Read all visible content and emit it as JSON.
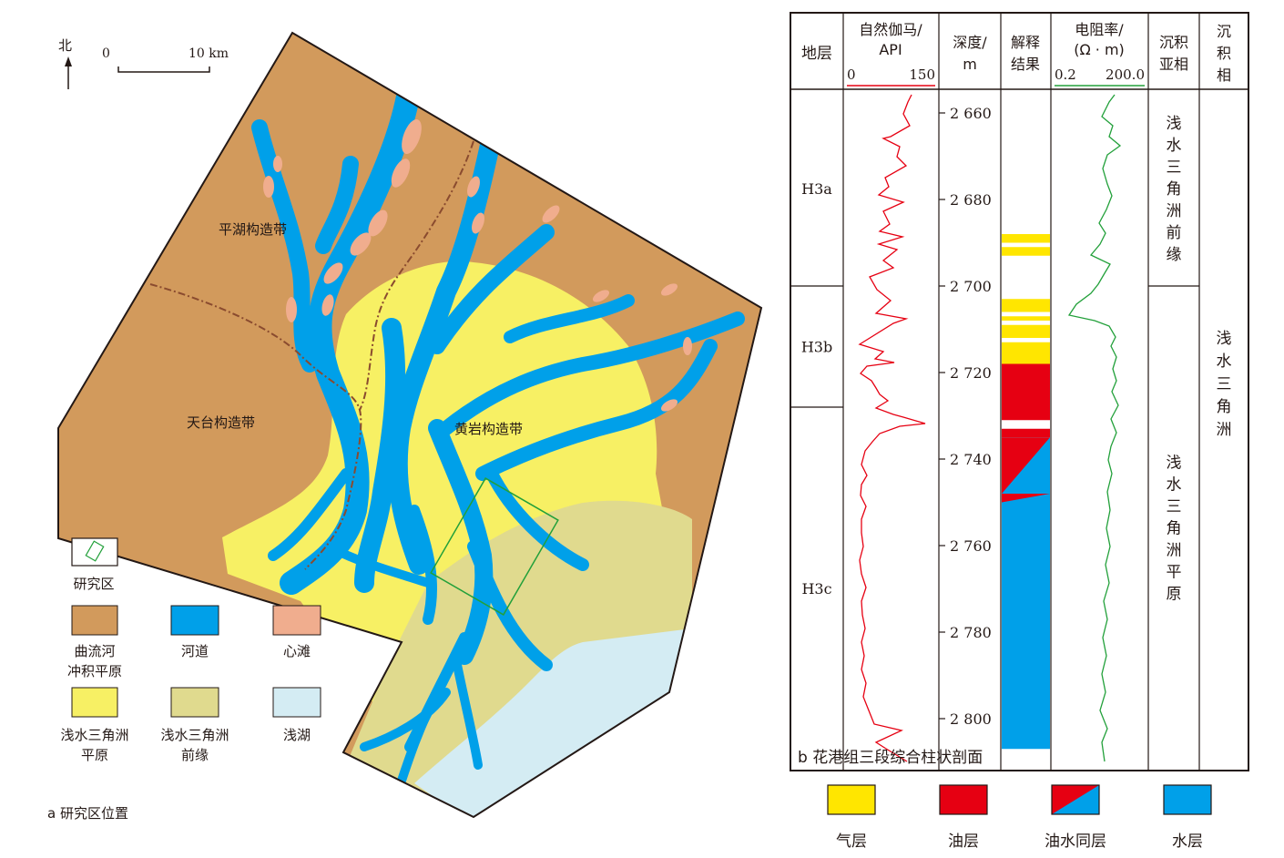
{
  "map": {
    "north_label": "北",
    "scale_start": "0",
    "scale_end": "10 km",
    "zones": {
      "pinghu": "平湖构造带",
      "tiantai": "天台构造带",
      "huangyan": "黄岩构造带"
    },
    "caption": "a 研究区位置",
    "colors": {
      "meander_plain": "#d29a5c",
      "channel": "#00a0e9",
      "bar": "#f0ad8e",
      "delta_plain": "#f7f064",
      "delta_front": "#e0da8e",
      "shallow_lake": "#d4ecf3",
      "study_area": "#22a03a"
    },
    "legend": [
      {
        "key": "study",
        "label": "研究区"
      },
      {
        "key": "meander_plain",
        "label": "曲流河\n冲积平原"
      },
      {
        "key": "channel",
        "label": "河道"
      },
      {
        "key": "bar",
        "label": "心滩"
      },
      {
        "key": "delta_plain",
        "label": "浅水三角洲\n平原"
      },
      {
        "key": "delta_front",
        "label": "浅水三角洲\n前缘"
      },
      {
        "key": "shallow_lake",
        "label": "浅湖"
      }
    ]
  },
  "column": {
    "headers": {
      "strata": "地层",
      "gamma_title": "自然伽马/\nAPI",
      "gamma_min": "0",
      "gamma_max": "150",
      "depth_title": "深度/\nm",
      "interp_title": "解释\n结果",
      "res_title": "电阻率/\n(Ω · m)",
      "res_min": "0.2",
      "res_max": "200.0",
      "subfacies_title": "沉积\n亚相",
      "facies_title": "沉\n积\n相"
    },
    "strata": [
      {
        "name": "H3a",
        "top": 2655,
        "bottom": 2700
      },
      {
        "name": "H3b",
        "top": 2700,
        "bottom": 2728
      },
      {
        "name": "H3c",
        "top": 2728,
        "bottom": 2812
      }
    ],
    "depth_ticks": [
      "2 660",
      "2 680",
      "2 700",
      "2 720",
      "2 740",
      "2 760",
      "2 780",
      "2 800"
    ],
    "depth_values": [
      2660,
      2680,
      2700,
      2720,
      2740,
      2760,
      2780,
      2800
    ],
    "subfacies": [
      {
        "name": "浅\n水\n三\n角\n洲\n前\n缘",
        "top": 2655,
        "bottom": 2700
      },
      {
        "name": "浅\n水\n三\n角\n洲\n平\n原",
        "top": 2700,
        "bottom": 2812
      }
    ],
    "facies": "浅\n水\n三\n角\n洲",
    "caption": "b 花港组三段综合柱状剖面",
    "interpretation": [
      {
        "type": "gas",
        "top": 2688,
        "bottom": 2690
      },
      {
        "type": "gas",
        "top": 2691,
        "bottom": 2693
      },
      {
        "type": "gas",
        "top": 2703,
        "bottom": 2706
      },
      {
        "type": "gas",
        "top": 2707,
        "bottom": 2708
      },
      {
        "type": "gas",
        "top": 2709,
        "bottom": 2712
      },
      {
        "type": "gas",
        "top": 2713,
        "bottom": 2718
      },
      {
        "type": "oil",
        "top": 2718,
        "bottom": 2731
      },
      {
        "type": "oil",
        "top": 2733,
        "bottom": 2735
      },
      {
        "type": "oilwater",
        "top": 2735,
        "bottom": 2748
      },
      {
        "type": "oilwater",
        "top": 2748,
        "bottom": 2750
      },
      {
        "type": "water",
        "top": 2750,
        "bottom": 2807
      }
    ],
    "legend": [
      {
        "key": "gas",
        "label": "气层",
        "color": "#ffe600"
      },
      {
        "key": "oil",
        "label": "油层",
        "color": "#e60012"
      },
      {
        "key": "oilwater",
        "label": "油水同层",
        "color": "#e60012",
        "color2": "#00a0e9"
      },
      {
        "key": "water",
        "label": "水层",
        "color": "#00a0e9"
      }
    ],
    "gamma_color": "#e60012",
    "res_color": "#22a03a"
  }
}
